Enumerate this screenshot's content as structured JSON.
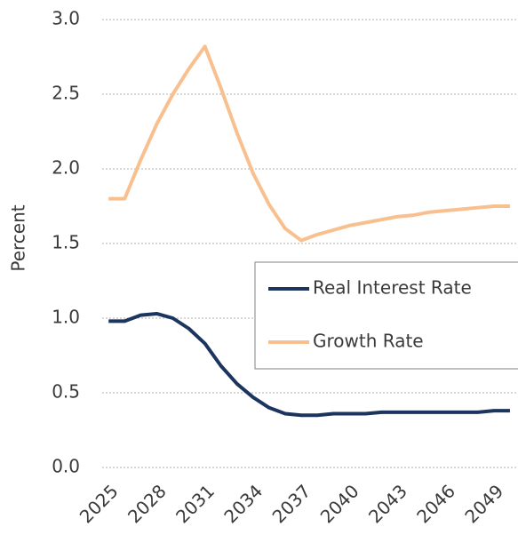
{
  "chart_data": {
    "type": "line",
    "y_label": "Percent",
    "x": [
      2025,
      2026,
      2027,
      2028,
      2029,
      2030,
      2031,
      2032,
      2033,
      2034,
      2035,
      2036,
      2037,
      2038,
      2039,
      2040,
      2041,
      2042,
      2043,
      2044,
      2045,
      2046,
      2047,
      2048,
      2049,
      2050
    ],
    "xlim": [
      2024.6,
      2050.5
    ],
    "xticks": [
      2025,
      2028,
      2031,
      2034,
      2037,
      2040,
      2043,
      2046,
      2049
    ],
    "ylim": [
      0,
      3
    ],
    "yticks": [
      {
        "value": 0,
        "label": "0.0"
      },
      0.5,
      {
        "value": 1,
        "label": "1.0"
      },
      1.5,
      {
        "value": 2,
        "label": "2.0"
      },
      2.5,
      {
        "value": 3,
        "label": "3.0"
      }
    ],
    "grid": true,
    "legend": "right",
    "series": [
      {
        "name": "Real Interest Rate",
        "color": "#1c355e",
        "values": [
          0.98,
          0.98,
          1.02,
          1.03,
          1.0,
          0.93,
          0.83,
          0.68,
          0.56,
          0.47,
          0.4,
          0.36,
          0.35,
          0.35,
          0.36,
          0.36,
          0.36,
          0.37,
          0.37,
          0.37,
          0.37,
          0.37,
          0.37,
          0.37,
          0.38,
          0.38
        ]
      },
      {
        "name": "Growth Rate",
        "color": "#f9c08f",
        "values": [
          1.8,
          1.8,
          2.06,
          2.3,
          2.5,
          2.67,
          2.82,
          2.54,
          2.24,
          1.97,
          1.76,
          1.6,
          1.52,
          1.56,
          1.59,
          1.62,
          1.64,
          1.66,
          1.68,
          1.69,
          1.71,
          1.72,
          1.73,
          1.74,
          1.75,
          1.75
        ]
      }
    ]
  }
}
